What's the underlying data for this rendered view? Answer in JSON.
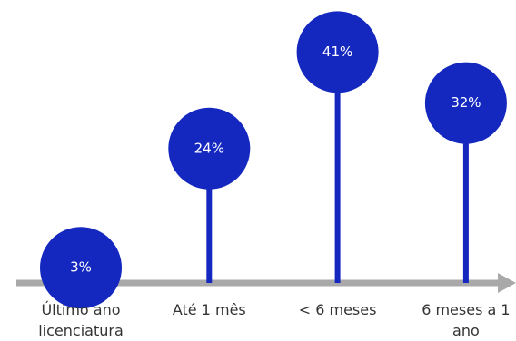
{
  "chart_data": {
    "type": "lollipop",
    "categories": [
      "Último ano licenciatura",
      "Até 1 mês",
      "< 6 meses",
      "6 meses a 1 ano"
    ],
    "values": [
      3,
      24,
      41,
      32
    ],
    "value_labels": [
      "3%",
      "24%",
      "41%",
      "32%"
    ],
    "color": "#1428c0",
    "axis_color": "#a9a9a9"
  }
}
